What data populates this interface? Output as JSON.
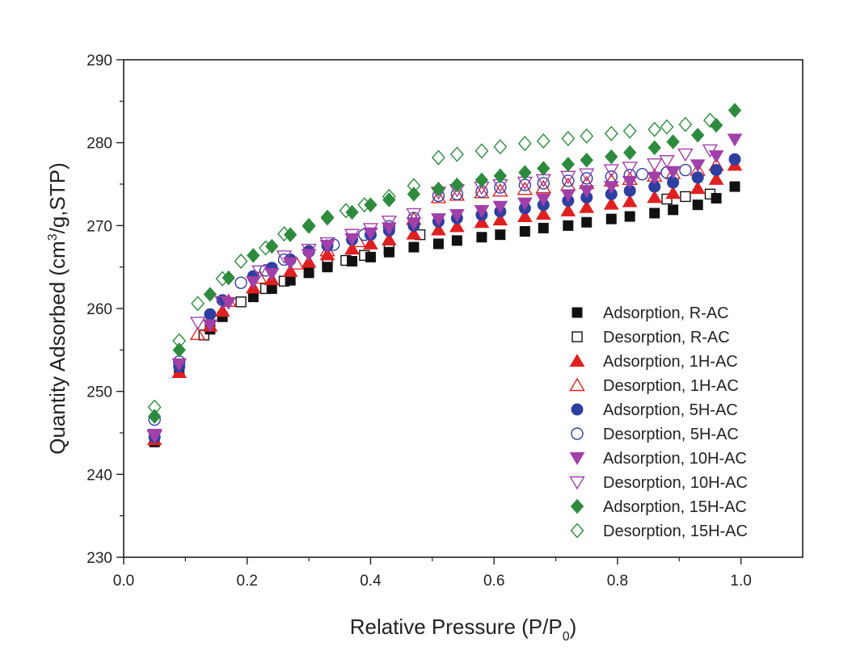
{
  "chart_data": {
    "type": "scatter",
    "xlabel": "Relative Pressure (P/P",
    "xlabel_sub": "0",
    "xlabel_end": ")",
    "ylabel": "Quantity Adsorbed (cm",
    "ylabel_sup": "3",
    "ylabel_end": "/g,STP)",
    "xlim": [
      0.0,
      1.1
    ],
    "ylim": [
      230,
      290
    ],
    "xticks": [
      0.0,
      0.2,
      0.4,
      0.6,
      0.8,
      1.0
    ],
    "xtick_labels": [
      "0.0",
      "0.2",
      "0.4",
      "0.6",
      "0.8",
      "1.0"
    ],
    "yticks": [
      230,
      240,
      250,
      260,
      270,
      280,
      290
    ],
    "ytick_labels": [
      "230",
      "240",
      "250",
      "260",
      "270",
      "280",
      "290"
    ],
    "legend_position": "lower-right",
    "grid": false,
    "series": [
      {
        "name": "Adsorption, R-AC",
        "color": "#111111",
        "marker": "square",
        "filled": true,
        "x": [
          0.05,
          0.09,
          0.14,
          0.16,
          0.21,
          0.24,
          0.27,
          0.3,
          0.33,
          0.37,
          0.4,
          0.43,
          0.47,
          0.51,
          0.54,
          0.58,
          0.61,
          0.65,
          0.68,
          0.72,
          0.75,
          0.79,
          0.82,
          0.86,
          0.89,
          0.93,
          0.96,
          0.99
        ],
        "y": [
          243.9,
          252.4,
          257.5,
          259.0,
          261.4,
          262.4,
          263.4,
          264.3,
          265.0,
          265.7,
          266.2,
          266.8,
          267.4,
          267.8,
          268.2,
          268.6,
          268.9,
          269.3,
          269.7,
          270.0,
          270.4,
          270.8,
          271.1,
          271.5,
          271.9,
          272.5,
          273.3,
          274.7
        ]
      },
      {
        "name": "Desorption, R-AC",
        "color": "#111111",
        "marker": "square",
        "filled": false,
        "x": [
          0.13,
          0.19,
          0.23,
          0.26,
          0.33,
          0.36,
          0.39,
          0.43,
          0.48,
          0.88,
          0.91,
          0.95
        ],
        "y": [
          256.8,
          260.8,
          262.4,
          263.3,
          265.3,
          265.8,
          266.4,
          267.1,
          268.9,
          273.2,
          273.5,
          273.8
        ]
      },
      {
        "name": "Adsorption, 1H-AC",
        "color": "#e02020",
        "marker": "triangle-up",
        "filled": true,
        "x": [
          0.05,
          0.09,
          0.14,
          0.16,
          0.21,
          0.24,
          0.27,
          0.3,
          0.33,
          0.37,
          0.4,
          0.43,
          0.47,
          0.51,
          0.54,
          0.58,
          0.61,
          0.65,
          0.68,
          0.72,
          0.75,
          0.79,
          0.82,
          0.86,
          0.89,
          0.93,
          0.96,
          0.99
        ],
        "y": [
          244.2,
          252.3,
          257.9,
          259.7,
          262.5,
          263.5,
          264.5,
          265.6,
          266.5,
          267.2,
          267.8,
          268.3,
          269.0,
          269.5,
          269.9,
          270.4,
          270.7,
          271.1,
          271.4,
          271.8,
          272.2,
          272.6,
          272.9,
          273.4,
          273.9,
          274.5,
          275.6,
          277.3
        ]
      },
      {
        "name": "Desorption, 1H-AC",
        "color": "#e02020",
        "marker": "triangle-up",
        "filled": false,
        "x": [
          0.12,
          0.17,
          0.22,
          0.28,
          0.33,
          0.38,
          0.47,
          0.51,
          0.54,
          0.58,
          0.61,
          0.65,
          0.68,
          0.72,
          0.75,
          0.79,
          0.82,
          0.86,
          0.89,
          0.93,
          0.96
        ],
        "y": [
          256.9,
          260.9,
          263.7,
          265.4,
          267.0,
          268.1,
          270.8,
          273.4,
          273.7,
          274.0,
          274.2,
          274.4,
          274.6,
          274.9,
          275.1,
          275.4,
          275.6,
          276.0,
          276.3,
          276.7,
          277.3
        ]
      },
      {
        "name": "Adsorption, 5H-AC",
        "color": "#2f3fa0",
        "marker": "circle",
        "filled": true,
        "x": [
          0.05,
          0.09,
          0.14,
          0.16,
          0.21,
          0.24,
          0.27,
          0.3,
          0.33,
          0.37,
          0.4,
          0.43,
          0.47,
          0.51,
          0.54,
          0.58,
          0.61,
          0.65,
          0.68,
          0.72,
          0.75,
          0.79,
          0.82,
          0.86,
          0.89,
          0.93,
          0.96,
          0.99
        ],
        "y": [
          244.5,
          253.0,
          259.3,
          261.0,
          263.9,
          264.9,
          265.9,
          266.9,
          267.6,
          268.3,
          268.9,
          269.4,
          270.0,
          270.5,
          270.9,
          271.3,
          271.7,
          272.1,
          272.5,
          273.0,
          273.4,
          273.8,
          274.2,
          274.7,
          275.2,
          275.8,
          276.7,
          278.0
        ]
      },
      {
        "name": "Desorption, 5H-AC",
        "color": "#2f3fa0",
        "marker": "circle",
        "filled": false,
        "x": [
          0.05,
          0.09,
          0.19,
          0.23,
          0.26,
          0.3,
          0.34,
          0.39,
          0.43,
          0.47,
          0.51,
          0.54,
          0.58,
          0.61,
          0.65,
          0.68,
          0.72,
          0.75,
          0.79,
          0.82,
          0.84,
          0.88,
          0.91
        ],
        "y": [
          246.6,
          253.6,
          263.1,
          264.6,
          265.9,
          266.9,
          267.7,
          268.9,
          269.9,
          270.9,
          273.6,
          273.8,
          274.1,
          274.6,
          274.9,
          275.1,
          275.4,
          275.7,
          275.9,
          276.1,
          276.2,
          276.4,
          276.7
        ]
      },
      {
        "name": "Adsorption, 10H-AC",
        "color": "#a040a8",
        "marker": "triangle-down",
        "filled": true,
        "x": [
          0.05,
          0.09,
          0.14,
          0.17,
          0.21,
          0.24,
          0.27,
          0.3,
          0.33,
          0.37,
          0.4,
          0.43,
          0.47,
          0.51,
          0.54,
          0.58,
          0.61,
          0.65,
          0.68,
          0.72,
          0.75,
          0.79,
          0.82,
          0.86,
          0.89,
          0.93,
          0.96,
          0.99
        ],
        "y": [
          244.8,
          253.3,
          258.0,
          260.7,
          263.2,
          264.2,
          265.5,
          266.5,
          267.6,
          268.4,
          269.1,
          269.7,
          270.3,
          270.8,
          271.3,
          271.8,
          272.3,
          272.7,
          273.2,
          273.7,
          274.2,
          274.7,
          275.3,
          275.8,
          276.5,
          277.3,
          278.4,
          280.4
        ]
      },
      {
        "name": "Desorption, 10H-AC",
        "color": "#a040a8",
        "marker": "triangle-down",
        "filled": false,
        "x": [
          0.05,
          0.12,
          0.16,
          0.22,
          0.26,
          0.3,
          0.33,
          0.37,
          0.4,
          0.43,
          0.47,
          0.51,
          0.54,
          0.58,
          0.61,
          0.65,
          0.68,
          0.72,
          0.75,
          0.79,
          0.82,
          0.86,
          0.88,
          0.91,
          0.95
        ],
        "y": [
          244.6,
          258.3,
          260.8,
          264.5,
          266.3,
          267.1,
          267.9,
          268.9,
          269.6,
          270.5,
          271.4,
          274.0,
          274.3,
          274.6,
          274.9,
          275.2,
          275.5,
          275.9,
          276.2,
          276.7,
          277.0,
          277.4,
          277.8,
          278.6,
          279.1
        ]
      },
      {
        "name": "Adsorption, 15H-AC",
        "color": "#2e8b3e",
        "marker": "diamond",
        "filled": true,
        "x": [
          0.05,
          0.09,
          0.14,
          0.17,
          0.21,
          0.24,
          0.27,
          0.3,
          0.33,
          0.37,
          0.4,
          0.43,
          0.47,
          0.51,
          0.54,
          0.58,
          0.61,
          0.65,
          0.68,
          0.72,
          0.75,
          0.79,
          0.82,
          0.86,
          0.89,
          0.93,
          0.96,
          0.99
        ],
        "y": [
          247.0,
          255.0,
          261.7,
          263.7,
          266.4,
          267.5,
          268.9,
          269.9,
          270.9,
          271.6,
          272.5,
          273.1,
          273.8,
          274.4,
          274.9,
          275.5,
          276.0,
          276.4,
          276.9,
          277.4,
          277.9,
          278.3,
          278.8,
          279.4,
          280.1,
          280.9,
          282.1,
          283.9
        ]
      },
      {
        "name": "Desorption, 15H-AC",
        "color": "#2e8b3e",
        "marker": "diamond",
        "filled": false,
        "x": [
          0.05,
          0.09,
          0.12,
          0.16,
          0.19,
          0.23,
          0.26,
          0.3,
          0.33,
          0.36,
          0.39,
          0.43,
          0.47,
          0.51,
          0.54,
          0.58,
          0.61,
          0.65,
          0.68,
          0.72,
          0.75,
          0.79,
          0.82,
          0.86,
          0.88,
          0.91,
          0.95
        ],
        "y": [
          248.1,
          256.1,
          260.6,
          263.6,
          265.7,
          267.3,
          269.0,
          270.0,
          271.0,
          271.8,
          272.5,
          273.5,
          274.8,
          278.2,
          278.6,
          279.0,
          279.5,
          279.9,
          280.2,
          280.5,
          280.8,
          281.1,
          281.4,
          281.6,
          281.9,
          282.2,
          282.7
        ]
      }
    ]
  }
}
